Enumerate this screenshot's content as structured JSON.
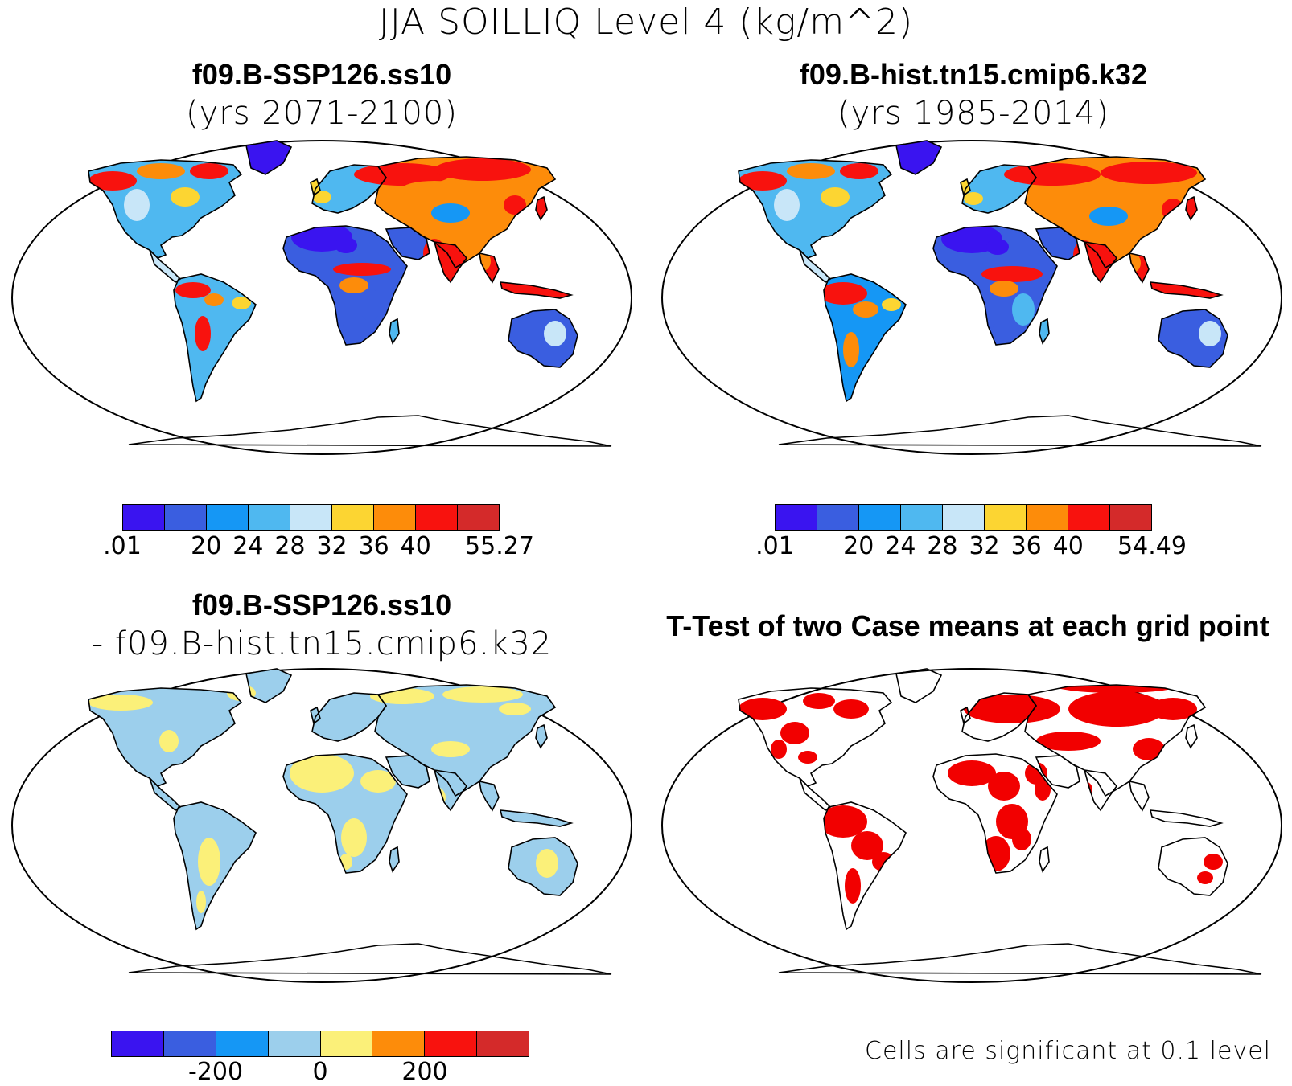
{
  "main_title": "JJA SOILLIQ Level 4 (kg/m^2)",
  "panels": {
    "top_left": {
      "title": "f09.B-SSP126.ss10",
      "subtitle": "(yrs 2071-2100)",
      "colorbar_labels": [
        ".01",
        "20",
        "24",
        "28",
        "32",
        "36",
        "40",
        "55.27"
      ]
    },
    "top_right": {
      "title": "f09.B-hist.tn15.cmip6.k32",
      "subtitle": "(yrs 1985-2014)",
      "colorbar_labels": [
        ".01",
        "20",
        "24",
        "28",
        "32",
        "36",
        "40",
        "54.49"
      ]
    },
    "bottom_left": {
      "title": "f09.B-SSP126.ss10",
      "subtitle": "- f09.B-hist.tn15.cmip6.k32",
      "colorbar_labels": [
        "-200",
        "0",
        "200"
      ]
    },
    "bottom_right": {
      "title": "T-Test of two Case means at each grid point",
      "note": "Cells are significant at 0.1 level"
    }
  },
  "colors": {
    "field_scale": [
      "#3a14f0",
      "#3a5ee0",
      "#1597f5",
      "#4fb8f0",
      "#c8e6f8",
      "#fcd532",
      "#fd8c0a",
      "#f8120e",
      "#d42a2a"
    ],
    "diff_scale": [
      "#3a14f0",
      "#3a5ee0",
      "#1597f5",
      "#9ccfec",
      "#fbf079",
      "#fd8c0a",
      "#f8120e",
      "#d42a2a"
    ],
    "significant": "#f20000",
    "ocean": "#ffffff"
  }
}
